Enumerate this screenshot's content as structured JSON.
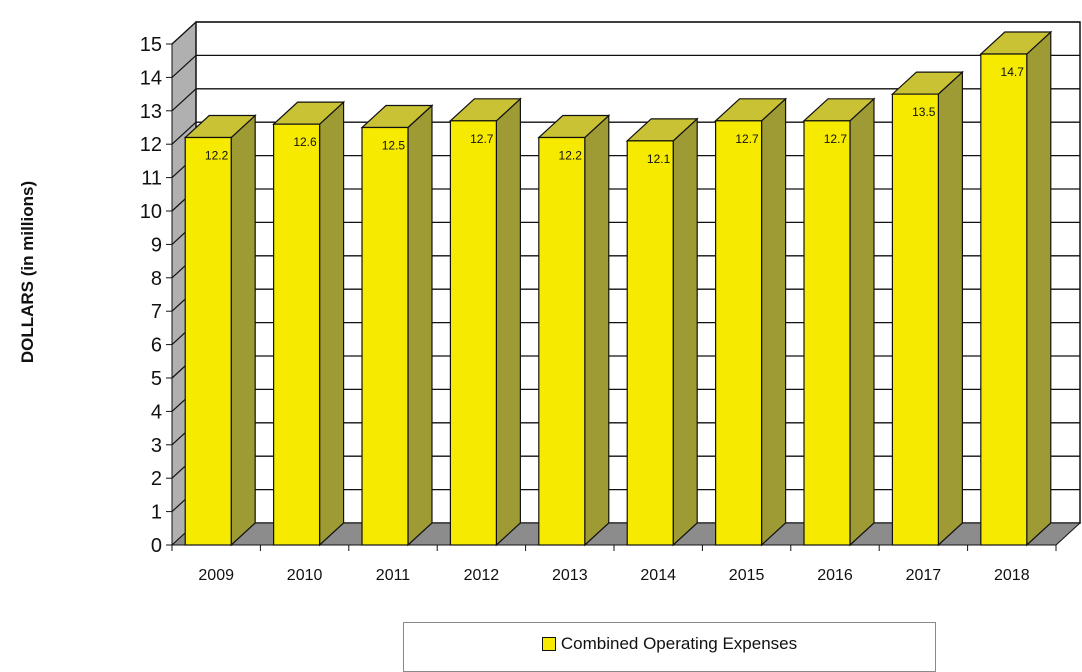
{
  "chart_data": {
    "type": "bar",
    "style": "3d",
    "categories": [
      "2009",
      "2010",
      "2011",
      "2012",
      "2013",
      "2014",
      "2015",
      "2016",
      "2017",
      "2018"
    ],
    "series": [
      {
        "name": "Combined Operating Expenses",
        "values": [
          12.2,
          12.6,
          12.5,
          12.7,
          12.2,
          12.1,
          12.7,
          12.7,
          13.5,
          14.7
        ],
        "data_labels": [
          "12.2",
          "12.6",
          "12.5",
          "12.7",
          "12.2",
          "12.1",
          "12.7",
          "12.7",
          "13.5",
          "14.7"
        ]
      }
    ],
    "ylabel": "DOLLARS (in millions)",
    "xlabel": "",
    "ylim": [
      0,
      15
    ],
    "yticks": [
      0,
      1,
      2,
      3,
      4,
      5,
      6,
      7,
      8,
      9,
      10,
      11,
      12,
      13,
      14,
      15
    ],
    "grid": true,
    "legend_position": "bottom",
    "colors": {
      "bar_front": "#f5ea00",
      "bar_top": "#c9c235",
      "bar_side": "#9f9b34",
      "floor": "#8c8c8c",
      "side_wall": "#b0b0b0",
      "edge": "#111111"
    }
  }
}
